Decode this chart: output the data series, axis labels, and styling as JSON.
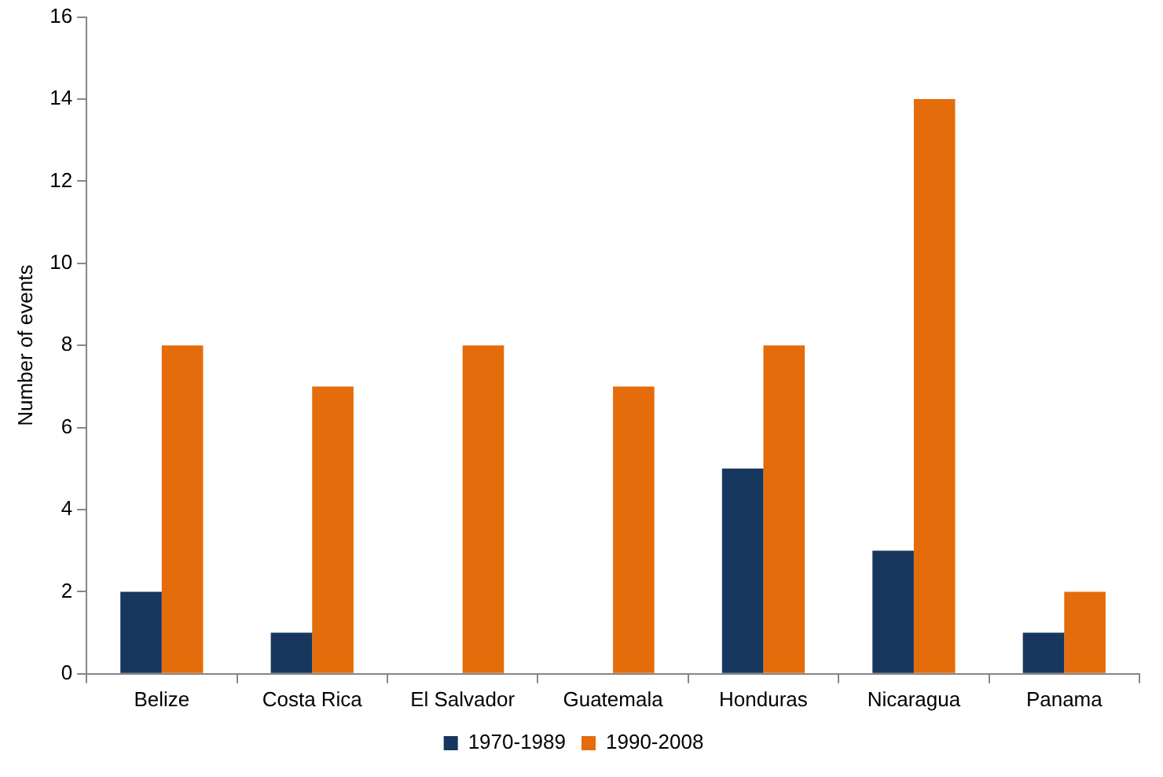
{
  "chart_data": {
    "type": "bar",
    "ylabel": "Number of events",
    "categories": [
      "Belize",
      "Costa Rica",
      "El Salvador",
      "Guatemala",
      "Honduras",
      "Nicaragua",
      "Panama"
    ],
    "series": [
      {
        "name": "1970-1989",
        "color": "#17375e",
        "values": [
          2,
          1,
          0,
          0,
          5,
          3,
          1
        ]
      },
      {
        "name": "1990-2008",
        "color": "#e46c0a",
        "values": [
          8,
          7,
          8,
          7,
          8,
          14,
          2
        ]
      }
    ],
    "ylim": [
      0,
      16
    ],
    "yticks": [
      0,
      2,
      4,
      6,
      8,
      10,
      12,
      14,
      16
    ],
    "grid": false,
    "legend": "bottom"
  }
}
